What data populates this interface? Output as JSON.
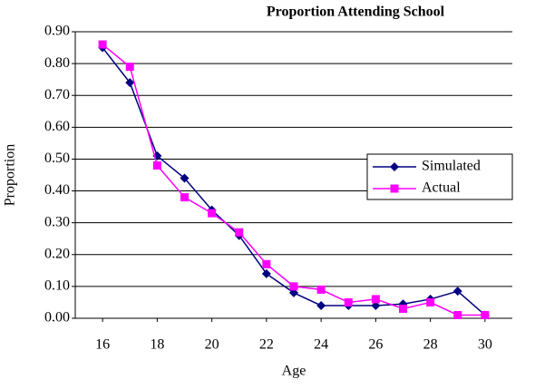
{
  "chart_data": {
    "type": "line",
    "title": "Proportion Attending School",
    "x_label": "Age",
    "y_label": "Proportion",
    "x": [
      16,
      17,
      18,
      19,
      20,
      21,
      22,
      23,
      24,
      25,
      26,
      27,
      28,
      29,
      30
    ],
    "series": [
      {
        "name": "Simulated",
        "color": "#000080",
        "marker": "diamond",
        "values": [
          0.85,
          0.74,
          0.51,
          0.44,
          0.34,
          0.26,
          0.14,
          0.08,
          0.04,
          0.04,
          0.04,
          0.045,
          0.06,
          0.085,
          0.01
        ]
      },
      {
        "name": "Actual",
        "color": "#ff00ff",
        "marker": "square",
        "values": [
          0.86,
          0.79,
          0.48,
          0.38,
          0.33,
          0.27,
          0.17,
          0.1,
          0.09,
          0.05,
          0.06,
          0.03,
          0.05,
          0.01,
          0.01
        ]
      }
    ],
    "xlim": [
      15,
      31
    ],
    "xticks": [
      16,
      18,
      20,
      22,
      24,
      26,
      28,
      30
    ],
    "ylim": [
      0,
      0.9
    ],
    "yticks": [
      {
        "value": 0,
        "label": "0.00"
      },
      {
        "value": 0.1,
        "label": "0.10"
      },
      {
        "value": 0.2,
        "label": "0.20"
      },
      {
        "value": 0.3,
        "label": "0.30"
      },
      {
        "value": 0.4,
        "label": "0.40"
      },
      {
        "value": 0.5,
        "label": "0.50"
      },
      {
        "value": 0.6,
        "label": "0.60"
      },
      {
        "value": 0.7,
        "label": "0.70"
      },
      {
        "value": 0.8,
        "label": "0.80"
      },
      {
        "value": 0.9,
        "label": "0.90"
      }
    ],
    "grid": true,
    "legend": "right"
  }
}
